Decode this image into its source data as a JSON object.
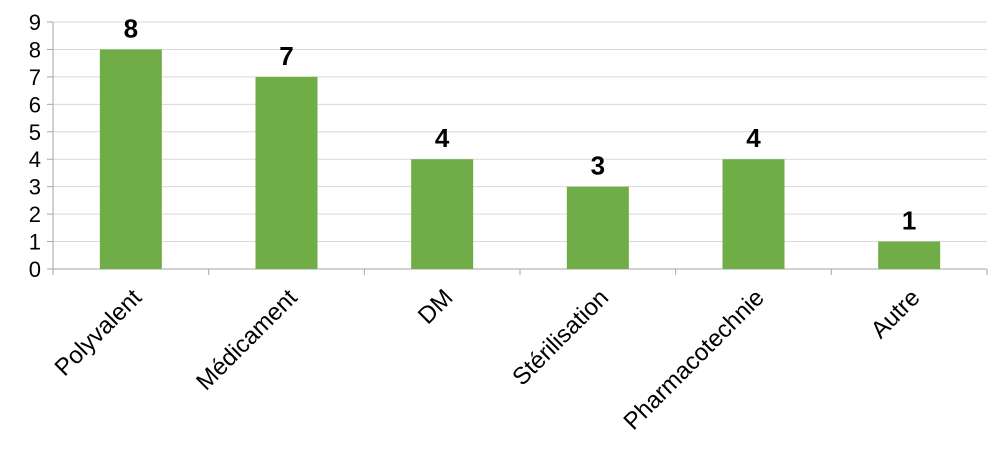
{
  "chart_data": {
    "type": "bar",
    "categories": [
      "Polyvalent",
      "Médicament",
      "DM",
      "Stérilisation",
      "Pharmacotechnie",
      "Autre"
    ],
    "values": [
      8,
      7,
      4,
      3,
      4,
      1
    ],
    "title": "",
    "xlabel": "",
    "ylabel": "",
    "ylim": [
      0,
      9
    ],
    "yticks": [
      0,
      1,
      2,
      3,
      4,
      5,
      6,
      7,
      8,
      9
    ],
    "grid": true,
    "legend": "none",
    "bar_color": "#70ad47",
    "data_labels": true
  }
}
